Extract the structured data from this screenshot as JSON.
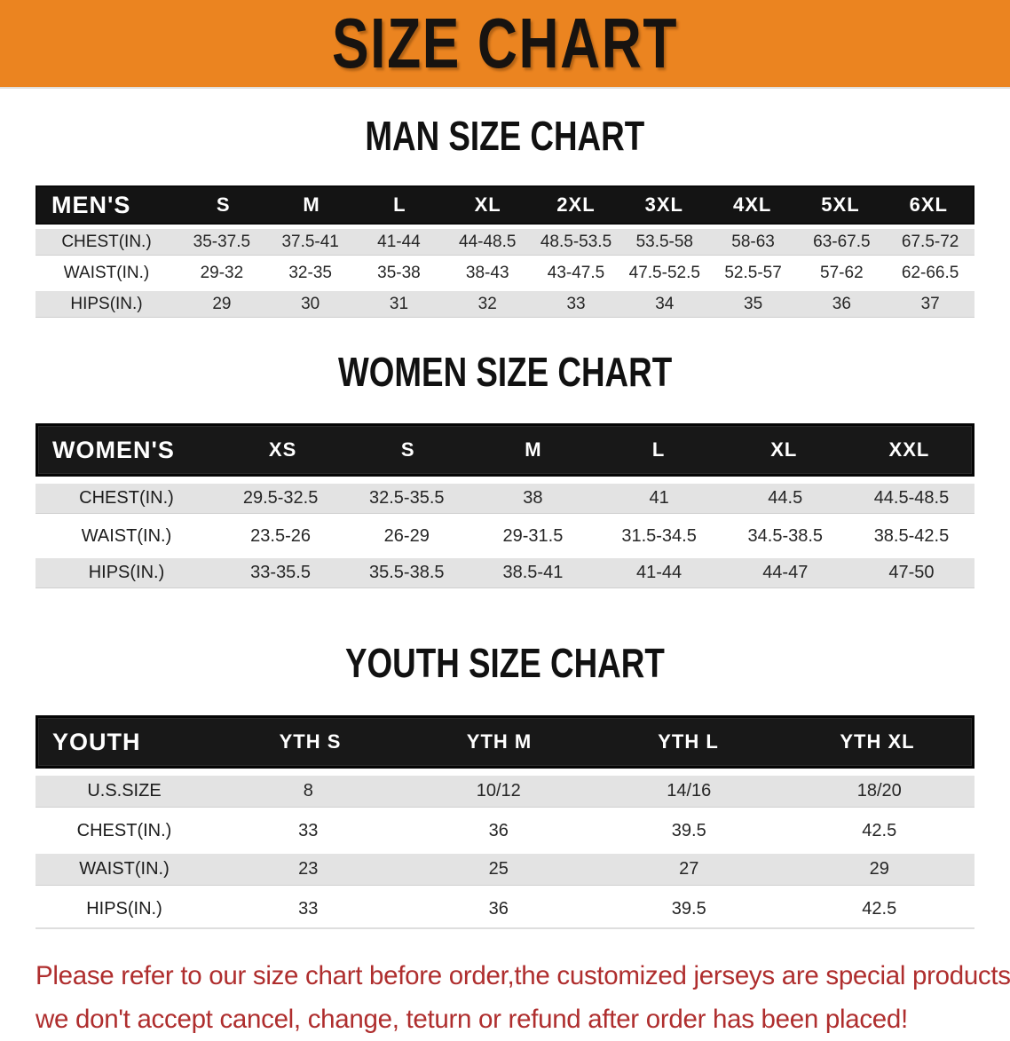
{
  "banner": {
    "title": "SIZE CHART",
    "bg_color": "#EB8420",
    "text_color": "#171310"
  },
  "colors": {
    "header_bar": "#141414",
    "row_stripe": "#E3E3E3",
    "disclaimer_red": "#AF2E2E"
  },
  "sections": [
    {
      "title": "MAN SIZE CHART",
      "header_label": "MEN'S",
      "columns": [
        "S",
        "M",
        "L",
        "XL",
        "2XL",
        "3XL",
        "4XL",
        "5XL",
        "6XL"
      ],
      "rows": [
        {
          "label": "CHEST(IN.)",
          "values": [
            "35-37.5",
            "37.5-41",
            "41-44",
            "44-48.5",
            "48.5-53.5",
            "53.5-58",
            "58-63",
            "63-67.5",
            "67.5-72"
          ]
        },
        {
          "label": "WAIST(IN.)",
          "values": [
            "29-32",
            "32-35",
            "35-38",
            "38-43",
            "43-47.5",
            "47.5-52.5",
            "52.5-57",
            "57-62",
            "62-66.5"
          ]
        },
        {
          "label": "HIPS(IN.)",
          "values": [
            "29",
            "30",
            "31",
            "32",
            "33",
            "34",
            "35",
            "36",
            "37"
          ]
        }
      ]
    },
    {
      "title": "WOMEN SIZE CHART",
      "header_label": "WOMEN'S",
      "columns": [
        "XS",
        "S",
        "M",
        "L",
        "XL",
        "XXL"
      ],
      "rows": [
        {
          "label": "CHEST(IN.)",
          "values": [
            "29.5-32.5",
            "32.5-35.5",
            "38",
            "41",
            "44.5",
            "44.5-48.5"
          ]
        },
        {
          "label": "WAIST(IN.)",
          "values": [
            "23.5-26",
            "26-29",
            "29-31.5",
            "31.5-34.5",
            "34.5-38.5",
            "38.5-42.5"
          ]
        },
        {
          "label": "HIPS(IN.)",
          "values": [
            "33-35.5",
            "35.5-38.5",
            "38.5-41",
            "41-44",
            "44-47",
            "47-50"
          ]
        }
      ]
    },
    {
      "title": "YOUTH SIZE CHART",
      "header_label": "YOUTH",
      "columns": [
        "YTH S",
        "YTH M",
        "YTH L",
        "YTH XL"
      ],
      "rows": [
        {
          "label": "U.S.SIZE",
          "values": [
            "8",
            "10/12",
            "14/16",
            "18/20"
          ]
        },
        {
          "label": "CHEST(IN.)",
          "values": [
            "33",
            "36",
            "39.5",
            "42.5"
          ]
        },
        {
          "label": "WAIST(IN.)",
          "values": [
            "23",
            "25",
            "27",
            "29"
          ]
        },
        {
          "label": "HIPS(IN.)",
          "values": [
            "33",
            "36",
            "39.5",
            "42.5"
          ]
        }
      ]
    }
  ],
  "footer": {
    "line1": "Please refer to our size chart before order,the customized jerseys are special products,",
    "line2": "we don't accept cancel, change, teturn or refund after order has been placed!"
  }
}
